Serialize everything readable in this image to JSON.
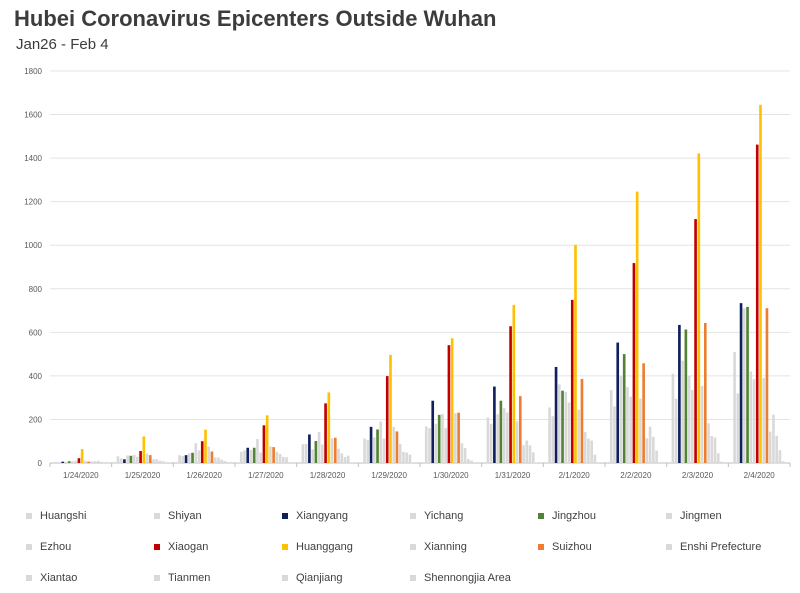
{
  "header": {
    "title": "Hubei Coronavirus Epicenters Outside Wuhan",
    "subtitle": "Jan26 - Feb 4"
  },
  "chart_data": {
    "type": "bar",
    "title": "Hubei Coronavirus Epicenters Outside Wuhan",
    "subtitle": "Jan26 - Feb 4",
    "xlabel": "",
    "ylabel": "",
    "ylim": [
      0,
      1800
    ],
    "yticks": [
      0,
      200,
      400,
      600,
      800,
      1000,
      1200,
      1400,
      1600,
      1800
    ],
    "grid": true,
    "legend_position": "bottom",
    "categories": [
      "1/24/2020",
      "1/25/2020",
      "1/26/2020",
      "1/27/2020",
      "1/28/2020",
      "1/29/2020",
      "1/30/2020",
      "1/31/2020",
      "2/1/2020",
      "2/2/2020",
      "2/3/2020",
      "2/4/2020"
    ],
    "series": [
      {
        "name": "Huangshi",
        "color": "#d9d9d9",
        "values": [
          5,
          31,
          36,
          52,
          86,
          112,
          168,
          209,
          255,
          335,
          410,
          510
        ]
      },
      {
        "name": "Shiyan",
        "color": "#d9d9d9",
        "values": [
          4,
          21,
          32,
          58,
          88,
          105,
          160,
          180,
          215,
          260,
          295,
          320
        ]
      },
      {
        "name": "Xiangyang",
        "color": "#10205c",
        "values": [
          6,
          17,
          36,
          70,
          131,
          166,
          286,
          351,
          441,
          553,
          634,
          734
        ]
      },
      {
        "name": "Yichang",
        "color": "#d9d9d9",
        "values": [
          5,
          35,
          44,
          60,
          63,
          117,
          180,
          224,
          361,
          400,
          470,
          710
        ]
      },
      {
        "name": "Jingzhou",
        "color": "#548235",
        "values": [
          8,
          33,
          47,
          70,
          101,
          154,
          221,
          286,
          332,
          500,
          613,
          717
        ]
      },
      {
        "name": "Jingmen",
        "color": "#d9d9d9",
        "values": [
          8,
          37,
          91,
          110,
          143,
          191,
          225,
          252,
          327,
          348,
          400,
          420
        ]
      },
      {
        "name": "Ezhou",
        "color": "#d9d9d9",
        "values": [
          10,
          29,
          58,
          48,
          85,
          112,
          160,
          232,
          278,
          305,
          335,
          385
        ]
      },
      {
        "name": "Xiaogan",
        "color": "#c00000",
        "values": [
          22,
          55,
          100,
          173,
          274,
          399,
          541,
          628,
          749,
          918,
          1120,
          1462
        ]
      },
      {
        "name": "Huanggang",
        "color": "#ffc000",
        "values": [
          64,
          122,
          153,
          219,
          324,
          496,
          573,
          726,
          1002,
          1246,
          1422,
          1645
        ]
      },
      {
        "name": "Xianning",
        "color": "#d9d9d9",
        "values": [
          11,
          43,
          75,
          76,
          113,
          166,
          229,
          192,
          245,
          296,
          354,
          390
        ]
      },
      {
        "name": "Suizhou",
        "color": "#ed7d31",
        "values": [
          6,
          36,
          53,
          73,
          116,
          145,
          231,
          307,
          386,
          458,
          643,
          711
        ]
      },
      {
        "name": "Enshi Prefecture",
        "color": "#d9d9d9",
        "values": [
          8,
          17,
          25,
          52,
          66,
          87,
          91,
          82,
          142,
          114,
          182,
          144
        ]
      },
      {
        "name": "Xiantao",
        "color": "#d9d9d9",
        "values": [
          8,
          17,
          25,
          42,
          44,
          51,
          69,
          103,
          112,
          167,
          124,
          222
        ]
      },
      {
        "name": "Tianmen",
        "color": "#d9d9d9",
        "values": [
          10,
          11,
          15,
          28,
          27,
          48,
          18,
          81,
          103,
          120,
          117,
          125
        ]
      },
      {
        "name": "Qianjiang",
        "color": "#d9d9d9",
        "values": [
          5,
          8,
          9,
          26,
          34,
          39,
          11,
          49,
          38,
          57,
          45,
          59
        ]
      },
      {
        "name": "Shennongjia Area",
        "color": "#d9d9d9",
        "values": [
          0,
          0,
          0,
          1,
          1,
          1,
          1,
          2,
          3,
          4,
          6,
          8
        ]
      }
    ]
  }
}
